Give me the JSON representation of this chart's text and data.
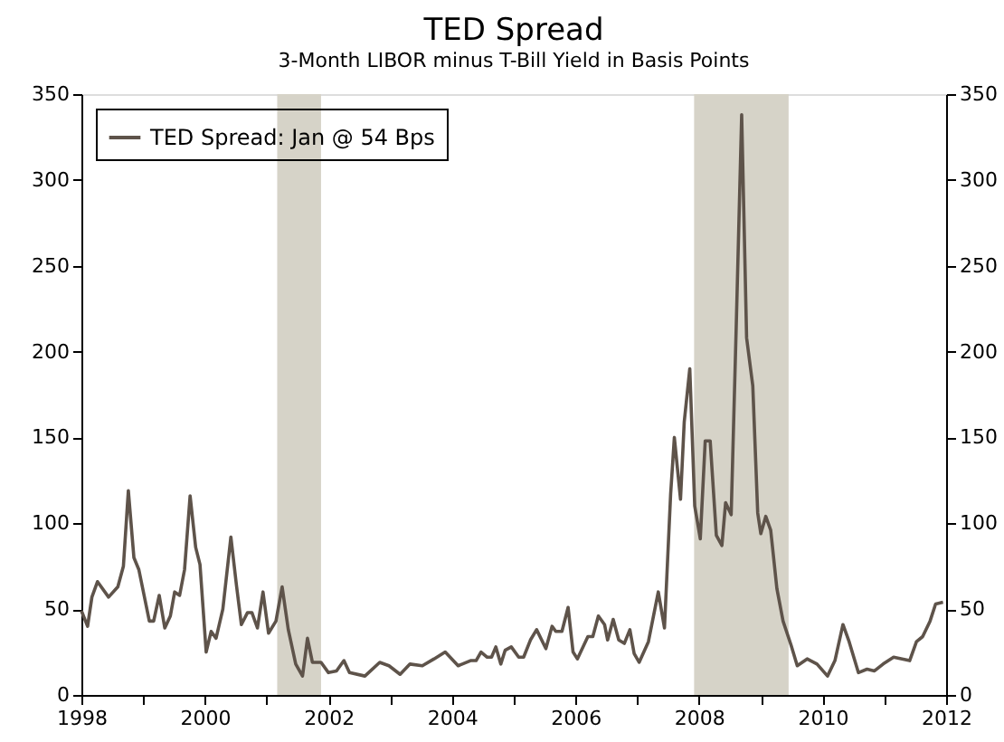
{
  "chart_data": {
    "type": "line",
    "title": "TED Spread",
    "subtitle": "3-Month LIBOR minus T-Bill Yield in Basis Points",
    "x": [
      1998.0,
      1998.1,
      1998.17,
      1998.26,
      1998.44,
      1998.59,
      1998.68,
      1998.76,
      1998.85,
      1998.93,
      1999.1,
      1999.17,
      1999.26,
      1999.35,
      1999.44,
      1999.51,
      1999.59,
      1999.67,
      1999.76,
      1999.85,
      1999.92,
      2000.02,
      2000.1,
      2000.18,
      2000.29,
      2000.42,
      2000.51,
      2000.59,
      2000.69,
      2000.76,
      2000.85,
      2000.94,
      2001.03,
      2001.15,
      2001.25,
      2001.35,
      2001.47,
      2001.58,
      2001.66,
      2001.74,
      2001.88,
      2002.0,
      2002.13,
      2002.25,
      2002.34,
      2002.59,
      2002.83,
      2002.98,
      2003.16,
      2003.32,
      2003.52,
      2003.71,
      2003.89,
      2004.1,
      2004.3,
      2004.39,
      2004.47,
      2004.57,
      2004.64,
      2004.71,
      2004.79,
      2004.86,
      2004.96,
      2005.08,
      2005.16,
      2005.27,
      2005.37,
      2005.52,
      2005.62,
      2005.68,
      2005.78,
      2005.88,
      2005.96,
      2006.03,
      2006.2,
      2006.28,
      2006.37,
      2006.47,
      2006.52,
      2006.61,
      2006.7,
      2006.79,
      2006.88,
      2006.95,
      2007.03,
      2007.18,
      2007.34,
      2007.44,
      2007.54,
      2007.6,
      2007.7,
      2007.76,
      2007.85,
      2007.93,
      2008.02,
      2008.1,
      2008.18,
      2008.28,
      2008.37,
      2008.43,
      2008.52,
      2008.6,
      2008.69,
      2008.77,
      2008.87,
      2008.95,
      2009.0,
      2009.08,
      2009.16,
      2009.26,
      2009.36,
      2009.49,
      2009.59,
      2009.75,
      2009.91,
      2010.08,
      2010.2,
      2010.33,
      2010.43,
      2010.58,
      2010.72,
      2010.84,
      2010.98,
      2011.15,
      2011.41,
      2011.52,
      2011.62,
      2011.74,
      2011.83,
      2011.95
    ],
    "series": [
      {
        "name": "TED Spread: Jan @ 54 Bps",
        "color": "#5e534a",
        "values": [
          49,
          40,
          57,
          66,
          57,
          63,
          75,
          119,
          80,
          73,
          43,
          43,
          58,
          39,
          46,
          60,
          58,
          73,
          116,
          86,
          76,
          25,
          37,
          33,
          50,
          92,
          64,
          41,
          48,
          48,
          39,
          60,
          36,
          43,
          63,
          38,
          18,
          11,
          33,
          19,
          19,
          13,
          14,
          20,
          13,
          11,
          19,
          17,
          12,
          18,
          17,
          21,
          25,
          17,
          20,
          20,
          25,
          22,
          22,
          28,
          18,
          26,
          28,
          22,
          22,
          32,
          38,
          27,
          40,
          37,
          37,
          51,
          25,
          21,
          34,
          34,
          46,
          41,
          32,
          44,
          32,
          30,
          38,
          24,
          19,
          31,
          60,
          39,
          117,
          150,
          114,
          159,
          190,
          110,
          91,
          148,
          148,
          93,
          87,
          112,
          105,
          212,
          338,
          208,
          180,
          106,
          94,
          104,
          96,
          62,
          43,
          29,
          17,
          21,
          18,
          11,
          20,
          41,
          31,
          13,
          15,
          14,
          18,
          22,
          20,
          31,
          34,
          43,
          53,
          54
        ]
      }
    ],
    "xlim": [
      1998,
      2012
    ],
    "ylim": [
      0,
      350
    ],
    "y2lim": [
      0,
      350
    ],
    "xticks": [
      1998,
      {
        "value": 1999,
        "label": null
      },
      2000,
      {
        "value": 2001,
        "label": null
      },
      2002,
      {
        "value": 2003,
        "label": null
      },
      2004,
      {
        "value": 2005,
        "label": null
      },
      2006,
      {
        "value": 2007,
        "label": null
      },
      2008,
      {
        "value": 2009,
        "label": null
      },
      2010,
      {
        "value": 2011,
        "label": null
      },
      2012
    ],
    "yticks": [
      0,
      50,
      100,
      150,
      200,
      250,
      300,
      350
    ],
    "y2ticks": [
      0,
      50,
      100,
      150,
      200,
      250,
      300,
      350
    ],
    "bands": [
      {
        "axis": "x",
        "from": 2001.17,
        "to": 2001.88,
        "color": "#d6d3c8"
      },
      {
        "axis": "x",
        "from": 2007.92,
        "to": 2009.45,
        "color": "#d6d3c8"
      }
    ],
    "legend": "top left",
    "grid": false,
    "line_style": "solid",
    "marker": "none"
  }
}
